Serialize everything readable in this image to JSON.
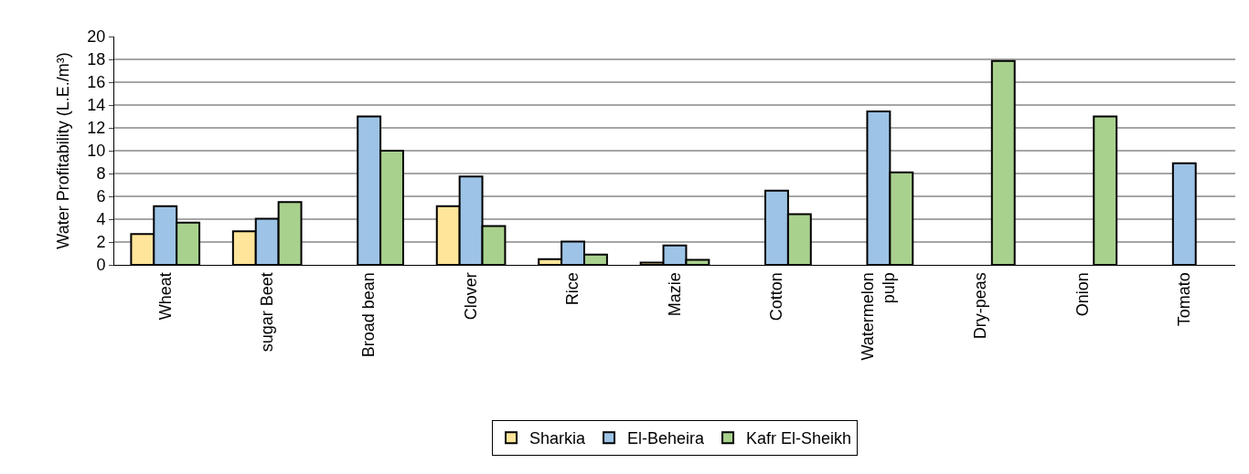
{
  "chart_data": {
    "type": "bar",
    "ylabel": "Water Profitability (L.E./m³)",
    "categories": [
      "Wheat",
      "sugar Beet",
      "Broad bean",
      "Clover",
      "Rice",
      "Mazie",
      "Cotton",
      "Watermelon\npulp",
      "Dry-peas",
      "Onion",
      "Tomato"
    ],
    "series": [
      {
        "name": "Sharkia",
        "color": "#fee599",
        "values": [
          2.7,
          2.95,
          null,
          5.15,
          0.5,
          0.2,
          null,
          null,
          null,
          null,
          null
        ]
      },
      {
        "name": "El-Beheira",
        "color": "#9dc3e6",
        "values": [
          5.15,
          4.05,
          13,
          7.75,
          2.05,
          1.7,
          6.5,
          13.45,
          null,
          null,
          8.9
        ]
      },
      {
        "name": "Kafr El-Sheikh",
        "color": "#a9d18e",
        "values": [
          3.7,
          5.5,
          10,
          3.4,
          0.9,
          0.45,
          4.45,
          8.1,
          17.85,
          13,
          null
        ]
      }
    ],
    "ylim": [
      0,
      20
    ],
    "yticks": [
      0,
      2,
      4,
      6,
      8,
      10,
      12,
      14,
      16,
      18,
      20
    ],
    "grid": "y",
    "legend": "bottom"
  }
}
